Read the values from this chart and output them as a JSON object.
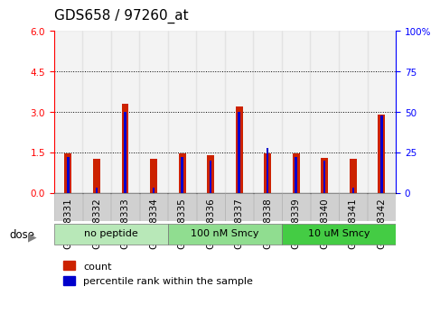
{
  "title": "GDS658 / 97260_at",
  "samples": [
    "GSM18331",
    "GSM18332",
    "GSM18333",
    "GSM18334",
    "GSM18335",
    "GSM18336",
    "GSM18337",
    "GSM18338",
    "GSM18339",
    "GSM18340",
    "GSM18341",
    "GSM18342"
  ],
  "count_values": [
    1.45,
    1.25,
    3.3,
    1.25,
    1.48,
    1.4,
    3.2,
    1.45,
    1.45,
    1.3,
    1.25,
    2.9
  ],
  "percentile_values": [
    22,
    3,
    50,
    3,
    22,
    20,
    50,
    28,
    22,
    20,
    3,
    48
  ],
  "groups": [
    {
      "label": "no peptide",
      "start": 0,
      "end": 4,
      "color": "#b8e8b8"
    },
    {
      "label": "100 nM Smcy",
      "start": 4,
      "end": 8,
      "color": "#90dd90"
    },
    {
      "label": "10 uM Smcy",
      "start": 8,
      "end": 12,
      "color": "#44cc44"
    }
  ],
  "left_ylim": [
    0,
    6
  ],
  "right_ylim": [
    0,
    100
  ],
  "left_yticks": [
    0,
    1.5,
    3.0,
    4.5,
    6.0
  ],
  "right_yticks": [
    0,
    25,
    50,
    75,
    100
  ],
  "right_yticklabels": [
    "0",
    "25",
    "50",
    "75",
    "100%"
  ],
  "bar_color": "#cc2200",
  "percentile_color": "#0000cc",
  "red_bar_width": 0.25,
  "blue_bar_width": 0.08,
  "count_label": "count",
  "percentile_label": "percentile rank within the sample",
  "dose_label": "dose",
  "xtick_bg": "#d0d0d0",
  "title_fontsize": 11,
  "tick_fontsize": 7.5,
  "grid_yticks": [
    1.5,
    3.0,
    4.5
  ]
}
